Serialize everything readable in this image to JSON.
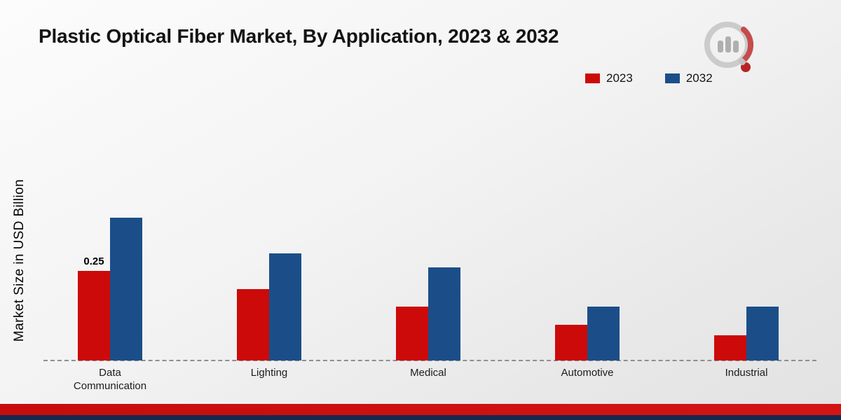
{
  "chart_data": {
    "type": "bar",
    "title": "Plastic Optical Fiber Market, By Application, 2023 & 2032",
    "ylabel": "Market Size in USD Billion",
    "xlabel": "",
    "categories": [
      "Data Communication",
      "Lighting",
      "Medical",
      "Automotive",
      "Industrial"
    ],
    "series": [
      {
        "name": "2023",
        "color": "#cc0a0a",
        "values": [
          0.25,
          0.2,
          0.15,
          0.1,
          0.07
        ]
      },
      {
        "name": "2032",
        "color": "#1b4e89",
        "values": [
          0.4,
          0.3,
          0.26,
          0.15,
          0.15
        ]
      }
    ],
    "annotations": [
      {
        "text": "0.25",
        "series": "2023",
        "category": "Data Communication"
      }
    ],
    "ylim": [
      0,
      0.45
    ],
    "grid": "dashed baseline only",
    "legend_position": "top-right"
  },
  "theme": {
    "footer_red": "#c60c0c",
    "footer_navy": "#15294e",
    "baseline_gray": "#8f8f8f",
    "logo_gray": "#c2c2c2",
    "logo_red": "#b50d0d"
  }
}
